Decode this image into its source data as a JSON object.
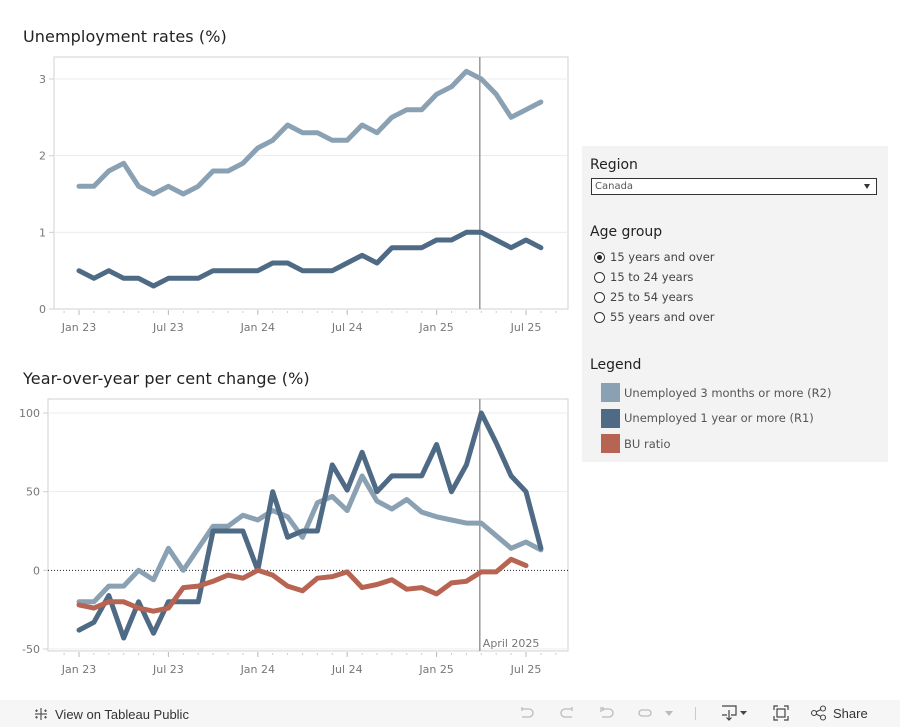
{
  "colors": {
    "r2": "#8aa1b4",
    "r1": "#4e6a84",
    "bu": "#b86452",
    "panel_bg": "#f3f3f3",
    "gridline": "#ececec",
    "axis": "#d0d0d0",
    "reference_line": "#999999"
  },
  "chart_data": [
    {
      "type": "line",
      "title": "Unemployment rates (%)",
      "xlabel": "",
      "ylabel": "",
      "x": [
        "Jan 23",
        "Feb 23",
        "Mar 23",
        "Apr 23",
        "May 23",
        "Jun 23",
        "Jul 23",
        "Aug 23",
        "Sep 23",
        "Oct 23",
        "Nov 23",
        "Dec 23",
        "Jan 24",
        "Feb 24",
        "Mar 24",
        "Apr 24",
        "May 24",
        "Jun 24",
        "Jul 24",
        "Aug 24",
        "Sep 24",
        "Oct 24",
        "Nov 24",
        "Dec 24",
        "Jan 25",
        "Feb 25",
        "Mar 25",
        "Apr 25",
        "May 25",
        "Jun 25",
        "Jul 25",
        "Aug 25"
      ],
      "x_tick_labels": [
        "Jan 23",
        "Jul 23",
        "Jan 24",
        "Jul 24",
        "Jan 25",
        "Jul 25"
      ],
      "y_ticks": [
        0,
        1,
        2,
        3
      ],
      "ylim": [
        0,
        3.3
      ],
      "grid": true,
      "reference_line": {
        "x": "Apr 25",
        "label": ""
      },
      "series": [
        {
          "name": "Unemployed 3 months or more (R2)",
          "color_key": "r2",
          "values": [
            1.6,
            1.6,
            1.8,
            1.9,
            1.6,
            1.5,
            1.6,
            1.5,
            1.6,
            1.8,
            1.8,
            1.9,
            2.1,
            2.2,
            2.4,
            2.3,
            2.3,
            2.2,
            2.2,
            2.4,
            2.3,
            2.5,
            2.6,
            2.6,
            2.8,
            2.9,
            3.1,
            3.0,
            2.8,
            2.5,
            2.6,
            2.7
          ]
        },
        {
          "name": "Unemployed 1 year or more (R1)",
          "color_key": "r1",
          "values": [
            0.5,
            0.4,
            0.5,
            0.4,
            0.4,
            0.3,
            0.4,
            0.4,
            0.4,
            0.5,
            0.5,
            0.5,
            0.5,
            0.6,
            0.6,
            0.5,
            0.5,
            0.5,
            0.6,
            0.7,
            0.6,
            0.8,
            0.8,
            0.8,
            0.9,
            0.9,
            1.0,
            1.0,
            0.9,
            0.8,
            0.9,
            0.8
          ]
        }
      ]
    },
    {
      "type": "line",
      "title": "Year-over-year per cent change (%)",
      "xlabel": "",
      "ylabel": "",
      "x": [
        "Jan 23",
        "Feb 23",
        "Mar 23",
        "Apr 23",
        "May 23",
        "Jun 23",
        "Jul 23",
        "Aug 23",
        "Sep 23",
        "Oct 23",
        "Nov 23",
        "Dec 23",
        "Jan 24",
        "Feb 24",
        "Mar 24",
        "Apr 24",
        "May 24",
        "Jun 24",
        "Jul 24",
        "Aug 24",
        "Sep 24",
        "Oct 24",
        "Nov 24",
        "Dec 24",
        "Jan 25",
        "Feb 25",
        "Mar 25",
        "Apr 25",
        "May 25",
        "Jun 25",
        "Jul 25",
        "Aug 25"
      ],
      "x_tick_labels": [
        "Jan 23",
        "Jul 23",
        "Jan 24",
        "Jul 24",
        "Jan 25",
        "Jul 25"
      ],
      "y_ticks": [
        -50,
        0,
        50,
        100
      ],
      "ylim": [
        -51,
        106
      ],
      "grid": true,
      "zero_line": "dotted",
      "reference_line": {
        "x": "Apr 25",
        "label": "April 2025"
      },
      "series": [
        {
          "name": "Unemployed 3 months or more (R2)",
          "color_key": "r2",
          "values": [
            -20,
            -20,
            -10,
            -10,
            0,
            -6,
            14,
            0,
            14,
            28,
            28,
            35,
            32,
            38,
            34,
            21,
            43,
            47,
            38,
            60,
            44,
            39,
            45,
            37,
            34,
            32,
            30,
            30,
            22,
            14,
            18,
            13
          ]
        },
        {
          "name": "Unemployed 1 year or more (R1)",
          "color_key": "r1",
          "values": [
            -38,
            -33,
            -16,
            -43,
            -20,
            -40,
            -20,
            -20,
            -20,
            25,
            25,
            25,
            0,
            50,
            21,
            25,
            25,
            67,
            51,
            75,
            50,
            60,
            60,
            60,
            80,
            50,
            67,
            100,
            81,
            60,
            50,
            14
          ]
        },
        {
          "name": "BU ratio",
          "color_key": "bu",
          "values": [
            -22,
            -24,
            -20,
            -20,
            -24,
            -26,
            -24,
            -11,
            -10,
            -7,
            -3,
            -5,
            0,
            -3,
            -10,
            -13,
            -5,
            -4,
            -1,
            -11,
            -9,
            -6,
            -12,
            -11,
            -15,
            -8,
            -7,
            -1,
            -1,
            7,
            3,
            null
          ]
        }
      ]
    }
  ],
  "filters": {
    "region": {
      "label": "Region",
      "selected": "Canada"
    },
    "age_group": {
      "label": "Age group",
      "options": [
        {
          "label": "15 years and over",
          "selected": true
        },
        {
          "label": "15 to 24 years",
          "selected": false
        },
        {
          "label": "25 to 54 years",
          "selected": false
        },
        {
          "label": "55 years and over",
          "selected": false
        }
      ]
    }
  },
  "legend": {
    "title": "Legend",
    "items": [
      {
        "label": "Unemployed 3 months or more (R2)",
        "color_key": "r2"
      },
      {
        "label": "Unemployed 1 year or more (R1)",
        "color_key": "r1"
      },
      {
        "label": "BU ratio",
        "color_key": "bu"
      }
    ]
  },
  "footer": {
    "view_label": "View on Tableau Public",
    "share_label": "Share",
    "icons": [
      "tableau-logo-icon",
      "undo-icon",
      "redo-icon",
      "revert-icon",
      "refresh-icon",
      "pause-dropdown-icon",
      "download-icon",
      "fullscreen-icon",
      "share-icon"
    ]
  }
}
